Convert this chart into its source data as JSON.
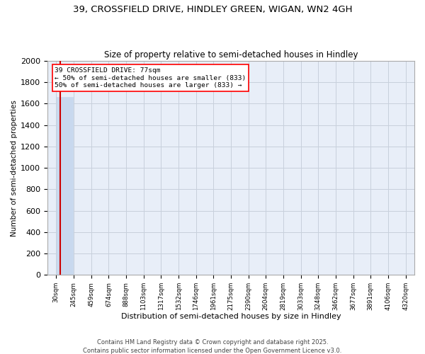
{
  "title": "39, CROSSFIELD DRIVE, HINDLEY GREEN, WIGAN, WN2 4GH",
  "subtitle": "Size of property relative to semi-detached houses in Hindley",
  "xlabel": "Distribution of semi-detached houses by size in Hindley",
  "ylabel": "Number of semi-detached properties",
  "bin_edges": [
    30,
    245,
    459,
    674,
    888,
    1103,
    1317,
    1532,
    1746,
    1961,
    2175,
    2390,
    2604,
    2819,
    3033,
    3248,
    3462,
    3677,
    3891,
    4106,
    4320
  ],
  "bar_heights": [
    1666,
    0,
    0,
    0,
    0,
    0,
    0,
    0,
    0,
    0,
    0,
    0,
    0,
    0,
    0,
    0,
    0,
    0,
    0,
    0
  ],
  "bar_color": "#c8d8ee",
  "background_color": "#e8eef8",
  "grid_color": "#c8d0dc",
  "property_size": 77,
  "median_count": 833,
  "annotation_line1": "39 CROSSFIELD DRIVE: 77sqm",
  "annotation_line2": "← 50% of semi-detached houses are smaller (833)",
  "annotation_line3": "50% of semi-detached houses are larger (833) →",
  "red_line_color": "#cc0000",
  "ylim": [
    0,
    2000
  ],
  "yticks": [
    0,
    200,
    400,
    600,
    800,
    1000,
    1200,
    1400,
    1600,
    1800,
    2000
  ],
  "tick_labels": [
    "30sqm",
    "245sqm",
    "459sqm",
    "674sqm",
    "888sqm",
    "1103sqm",
    "1317sqm",
    "1532sqm",
    "1746sqm",
    "1961sqm",
    "2175sqm",
    "2390sqm",
    "2604sqm",
    "2819sqm",
    "3033sqm",
    "3248sqm",
    "3462sqm",
    "3677sqm",
    "3891sqm",
    "4106sqm",
    "4320sqm"
  ],
  "footer_line1": "Contains HM Land Registry data © Crown copyright and database right 2025.",
  "footer_line2": "Contains public sector information licensed under the Open Government Licence v3.0."
}
